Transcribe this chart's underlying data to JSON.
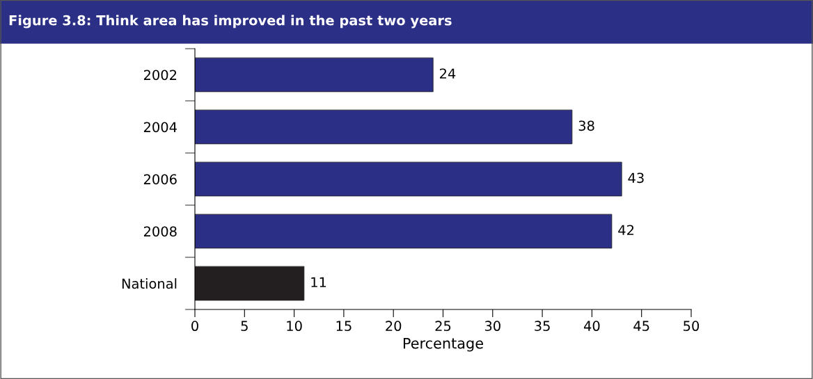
{
  "chart_data": {
    "type": "bar",
    "orientation": "horizontal",
    "title": "Figure 3.8: Think area has improved in the past two years",
    "categories": [
      "2002",
      "2004",
      "2006",
      "2008",
      "National"
    ],
    "values": [
      24,
      38,
      43,
      42,
      11
    ],
    "colors": [
      "#2b2f85",
      "#2b2f85",
      "#2b2f85",
      "#2b2f85",
      "#231f20"
    ],
    "xlabel": "Percentage",
    "xlim": [
      0,
      50
    ],
    "xticks": [
      0,
      5,
      10,
      15,
      20,
      25,
      30,
      35,
      40,
      45,
      50
    ],
    "data_labels": true,
    "grid": false,
    "legend": false
  }
}
